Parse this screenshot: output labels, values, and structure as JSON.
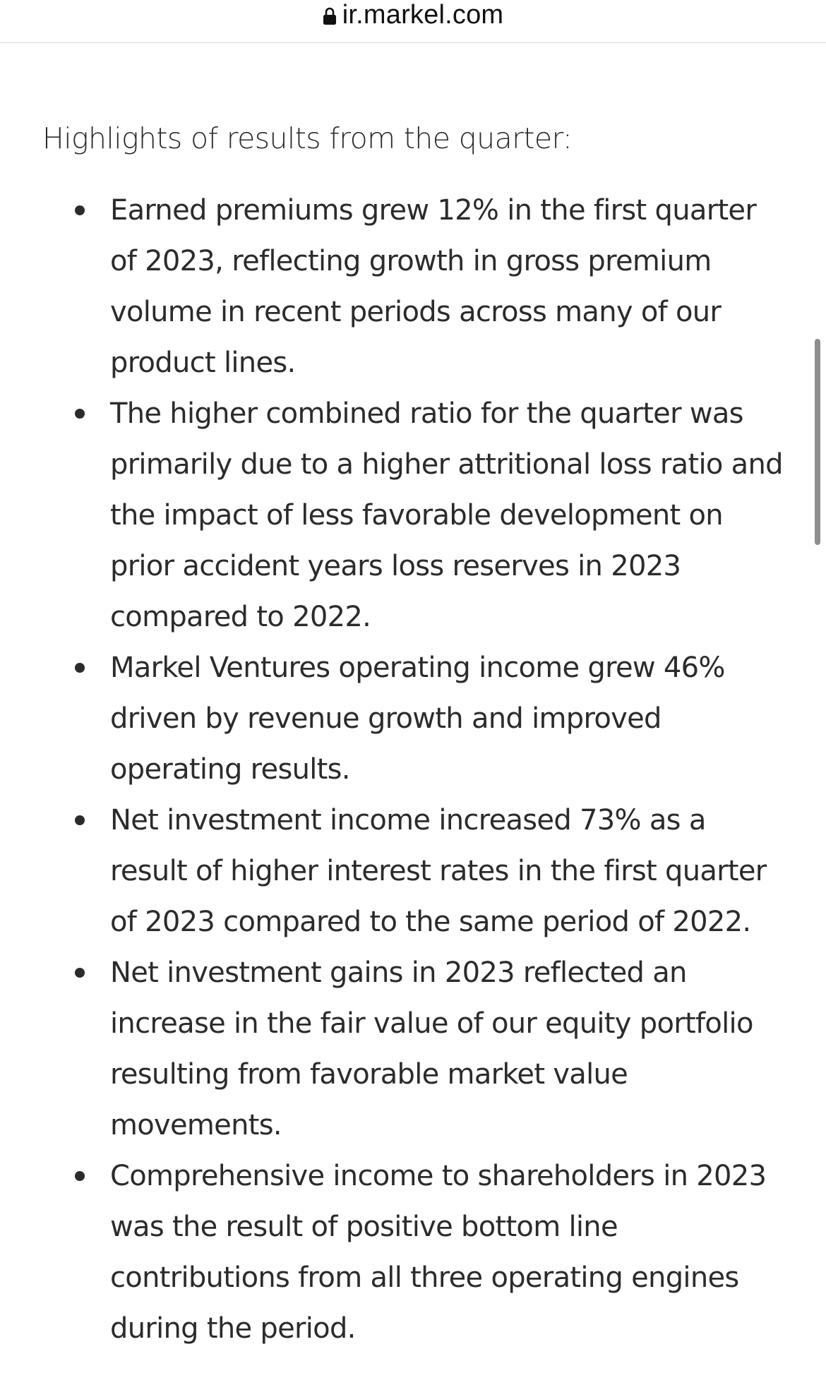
{
  "browser": {
    "url": "ir.markel.com",
    "lock_icon": "lock-icon"
  },
  "article": {
    "intro": "Highlights of results from the quarter:",
    "highlights": [
      "Earned premiums grew 12% in the first quarter of 2023, reflecting growth in gross premium volume in recent periods across many of our product lines.",
      "The higher combined ratio for the quarter was primarily due to a higher attritional loss ratio and the impact of less favorable development on prior accident years loss reserves in 2023 compared to 2022.",
      "Markel Ventures operating income grew 46% driven by revenue growth and improved operating results.",
      "Net investment income increased 73% as a result of higher interest rates in the first quarter of 2023 compared to the same period of 2022.",
      "Net investment gains in 2023 reflected an increase in the fair value of our equity portfolio resulting from favorable market value movements.",
      "Comprehensive income to shareholders in 2023 was the result of positive bottom line contributions from all three operating engines during the period."
    ]
  }
}
